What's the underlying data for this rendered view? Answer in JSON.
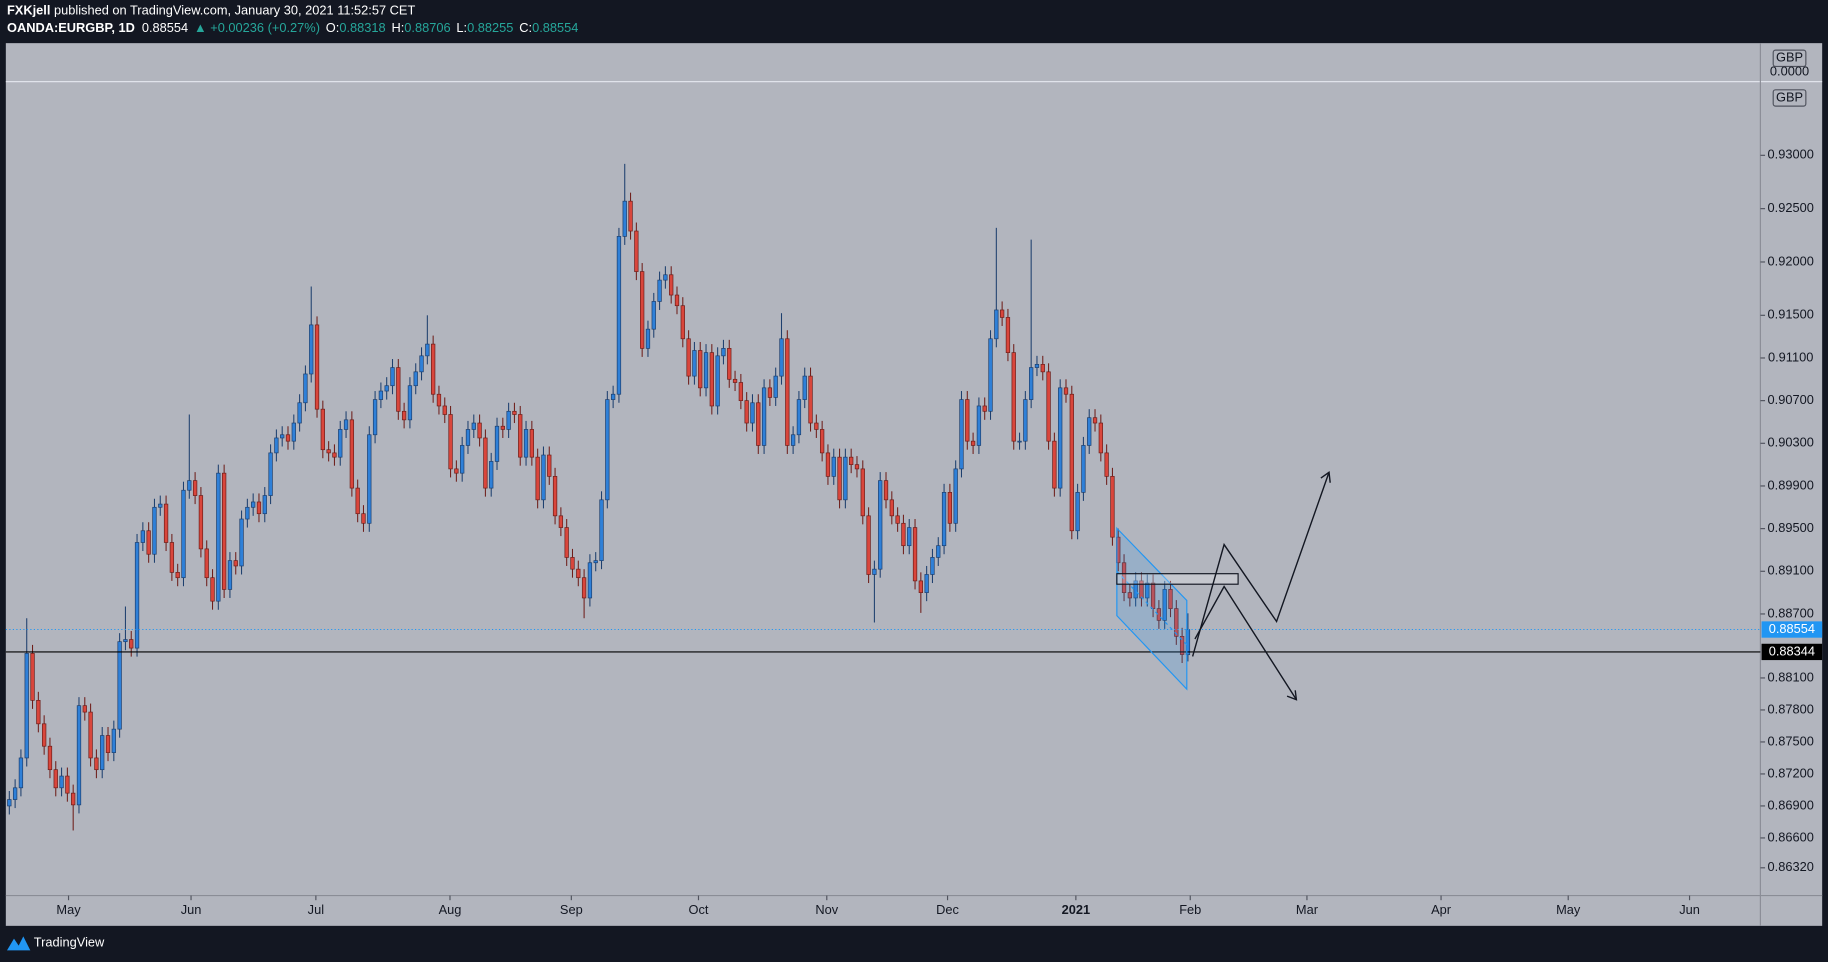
{
  "header": {
    "publisher": "FXKjell",
    "published": " published on TradingView.com, January 30, 2021 11:52:57 CET",
    "symbol": "OANDA:EURGBP, 1D",
    "last": "0.88554",
    "change": "▲ +0.00236 (+0.27%)",
    "o_label": "O:",
    "o": "0.88318",
    "h_label": "H:",
    "h": "0.88706",
    "l_label": "L:",
    "l": "0.88255",
    "c_label": "C:",
    "c": "0.88554"
  },
  "footer": {
    "brand": "TradingView"
  },
  "top_pane": {
    "unit": "GBP",
    "tick": "0.0000"
  },
  "chart_data": {
    "type": "candlestick",
    "unit": "GBP",
    "colors": {
      "up": "#2f80d8",
      "down": "#d9463c",
      "up_edge": "#1d3f6e",
      "down_edge": "#6e1e1a"
    },
    "xlim": [
      -0.6,
      301.6
    ],
    "xticks": [
      {
        "value": 10.2,
        "label": "May"
      },
      {
        "value": 31.3,
        "label": "Jun"
      },
      {
        "value": 52.8,
        "label": "Jul"
      },
      {
        "value": 75.9,
        "label": "Aug"
      },
      {
        "value": 96.8,
        "label": "Sep"
      },
      {
        "value": 118.7,
        "label": "Oct"
      },
      {
        "value": 140.8,
        "label": "Nov"
      },
      {
        "value": 161.6,
        "label": "Dec"
      },
      {
        "value": 183.7,
        "label": "2021"
      },
      {
        "value": 203.4,
        "label": "Feb"
      },
      {
        "value": 223.5,
        "label": "Mar"
      },
      {
        "value": 246.6,
        "label": "Apr"
      },
      {
        "value": 268.5,
        "label": "May"
      },
      {
        "value": 289.4,
        "label": "Jun"
      }
    ],
    "ylim": [
      0.8606,
      0.9368
    ],
    "yticks": [
      {
        "value": 0.93,
        "label": "0.93000"
      },
      {
        "value": 0.925,
        "label": "0.92500"
      },
      {
        "value": 0.92,
        "label": "0.92000"
      },
      {
        "value": 0.915,
        "label": "0.91500"
      },
      {
        "value": 0.911,
        "label": "0.91100"
      },
      {
        "value": 0.907,
        "label": "0.90700"
      },
      {
        "value": 0.903,
        "label": "0.90300"
      },
      {
        "value": 0.899,
        "label": "0.89900"
      },
      {
        "value": 0.895,
        "label": "0.89500"
      },
      {
        "value": 0.891,
        "label": "0.89100"
      },
      {
        "value": 0.887,
        "label": "0.88700"
      },
      {
        "value": 0.881,
        "label": "0.88100"
      },
      {
        "value": 0.878,
        "label": "0.87800"
      },
      {
        "value": 0.875,
        "label": "0.87500"
      },
      {
        "value": 0.872,
        "label": "0.87200"
      },
      {
        "value": 0.869,
        "label": "0.86900"
      },
      {
        "value": 0.866,
        "label": "0.86600"
      },
      {
        "value": 0.8632,
        "label": "0.86320"
      }
    ],
    "price_lines": [
      {
        "value": 0.88554,
        "label": "0.88554",
        "color": "#2196f3",
        "style": "dotted"
      },
      {
        "value": 0.88344,
        "label": "0.88344",
        "color": "#000000",
        "style": "solid"
      }
    ],
    "ohlc": [
      [
        0.869,
        0.8704,
        0.8682,
        0.8696
      ],
      [
        0.8696,
        0.8715,
        0.8688,
        0.8707
      ],
      [
        0.8707,
        0.8743,
        0.8699,
        0.8735
      ],
      [
        0.8735,
        0.8866,
        0.8727,
        0.8833
      ],
      [
        0.8833,
        0.8841,
        0.8781,
        0.8789
      ],
      [
        0.8789,
        0.8797,
        0.8759,
        0.8767
      ],
      [
        0.8767,
        0.8775,
        0.8738,
        0.8746
      ],
      [
        0.8746,
        0.8754,
        0.8716,
        0.8724
      ],
      [
        0.8724,
        0.8732,
        0.8699,
        0.8707
      ],
      [
        0.8707,
        0.8726,
        0.8699,
        0.8718
      ],
      [
        0.8718,
        0.8726,
        0.8694,
        0.8702
      ],
      [
        0.8702,
        0.871,
        0.8667,
        0.8691
      ],
      [
        0.8691,
        0.8792,
        0.8683,
        0.8784
      ],
      [
        0.8784,
        0.8792,
        0.877,
        0.8778
      ],
      [
        0.8778,
        0.8786,
        0.8727,
        0.8735
      ],
      [
        0.8735,
        0.8743,
        0.8716,
        0.8724
      ],
      [
        0.8724,
        0.8764,
        0.8716,
        0.8756
      ],
      [
        0.8756,
        0.8764,
        0.8732,
        0.874
      ],
      [
        0.874,
        0.877,
        0.8732,
        0.8762
      ],
      [
        0.8762,
        0.8852,
        0.8754,
        0.8844
      ],
      [
        0.8844,
        0.8877,
        0.8836,
        0.8846
      ],
      [
        0.8846,
        0.8854,
        0.883,
        0.8838
      ],
      [
        0.8838,
        0.8945,
        0.883,
        0.8937
      ],
      [
        0.8937,
        0.8956,
        0.8929,
        0.8948
      ],
      [
        0.8948,
        0.8956,
        0.8918,
        0.8926
      ],
      [
        0.8926,
        0.8978,
        0.8918,
        0.897
      ],
      [
        0.897,
        0.8981,
        0.8962,
        0.8973
      ],
      [
        0.8973,
        0.8981,
        0.8929,
        0.8937
      ],
      [
        0.8937,
        0.8945,
        0.8901,
        0.8909
      ],
      [
        0.8909,
        0.8917,
        0.8896,
        0.8904
      ],
      [
        0.8904,
        0.8994,
        0.8896,
        0.8986
      ],
      [
        0.8986,
        0.9057,
        0.8978,
        0.8995
      ],
      [
        0.8995,
        0.9003,
        0.8973,
        0.8981
      ],
      [
        0.8981,
        0.8989,
        0.8923,
        0.8931
      ],
      [
        0.8931,
        0.8939,
        0.8896,
        0.8904
      ],
      [
        0.8904,
        0.8912,
        0.8874,
        0.8882
      ],
      [
        0.8882,
        0.901,
        0.8874,
        0.9002
      ],
      [
        0.9002,
        0.901,
        0.8885,
        0.8893
      ],
      [
        0.8893,
        0.8928,
        0.8885,
        0.892
      ],
      [
        0.892,
        0.8928,
        0.8907,
        0.8915
      ],
      [
        0.8915,
        0.8967,
        0.8907,
        0.8959
      ],
      [
        0.8959,
        0.8978,
        0.8951,
        0.897
      ],
      [
        0.897,
        0.8983,
        0.8962,
        0.8975
      ],
      [
        0.8975,
        0.8983,
        0.8956,
        0.8964
      ],
      [
        0.8964,
        0.8989,
        0.8956,
        0.8981
      ],
      [
        0.8981,
        0.9029,
        0.8973,
        0.9021
      ],
      [
        0.9021,
        0.9043,
        0.9013,
        0.9035
      ],
      [
        0.9035,
        0.9046,
        0.9027,
        0.9038
      ],
      [
        0.9038,
        0.9046,
        0.9024,
        0.9032
      ],
      [
        0.9032,
        0.9057,
        0.9024,
        0.9049
      ],
      [
        0.9049,
        0.9076,
        0.9041,
        0.9068
      ],
      [
        0.9068,
        0.9103,
        0.906,
        0.9095
      ],
      [
        0.9095,
        0.9177,
        0.9087,
        0.9141
      ],
      [
        0.9141,
        0.9149,
        0.9054,
        0.9062
      ],
      [
        0.9062,
        0.907,
        0.9016,
        0.9024
      ],
      [
        0.9024,
        0.9032,
        0.9013,
        0.9021
      ],
      [
        0.9021,
        0.9029,
        0.9009,
        0.9017
      ],
      [
        0.9017,
        0.9051,
        0.9009,
        0.9043
      ],
      [
        0.9043,
        0.906,
        0.9035,
        0.9052
      ],
      [
        0.9052,
        0.906,
        0.898,
        0.8988
      ],
      [
        0.8988,
        0.8996,
        0.8956,
        0.8964
      ],
      [
        0.8964,
        0.8972,
        0.8947,
        0.8955
      ],
      [
        0.8955,
        0.9046,
        0.8947,
        0.9038
      ],
      [
        0.9038,
        0.9079,
        0.903,
        0.9071
      ],
      [
        0.9071,
        0.9087,
        0.9063,
        0.9079
      ],
      [
        0.9079,
        0.9092,
        0.9071,
        0.9084
      ],
      [
        0.9084,
        0.9109,
        0.9076,
        0.9101
      ],
      [
        0.9101,
        0.9109,
        0.9052,
        0.906
      ],
      [
        0.906,
        0.9068,
        0.9044,
        0.9052
      ],
      [
        0.9052,
        0.9092,
        0.9044,
        0.9084
      ],
      [
        0.9084,
        0.9105,
        0.9076,
        0.9097
      ],
      [
        0.9097,
        0.912,
        0.9089,
        0.9112
      ],
      [
        0.9112,
        0.915,
        0.9104,
        0.9123
      ],
      [
        0.9123,
        0.9131,
        0.9068,
        0.9076
      ],
      [
        0.9076,
        0.9084,
        0.9057,
        0.9065
      ],
      [
        0.9065,
        0.9073,
        0.9049,
        0.9057
      ],
      [
        0.9057,
        0.9065,
        0.8998,
        0.9006
      ],
      [
        0.9006,
        0.9014,
        0.8994,
        0.9002
      ],
      [
        0.9002,
        0.9036,
        0.8994,
        0.9028
      ],
      [
        0.9028,
        0.9051,
        0.902,
        0.9043
      ],
      [
        0.9043,
        0.9057,
        0.9035,
        0.9049
      ],
      [
        0.9049,
        0.9057,
        0.9027,
        0.9035
      ],
      [
        0.9035,
        0.9043,
        0.898,
        0.8988
      ],
      [
        0.8988,
        0.9021,
        0.898,
        0.9013
      ],
      [
        0.9013,
        0.9054,
        0.9005,
        0.9046
      ],
      [
        0.9046,
        0.9054,
        0.9035,
        0.9043
      ],
      [
        0.9043,
        0.9068,
        0.9035,
        0.906
      ],
      [
        0.906,
        0.9068,
        0.9049,
        0.9057
      ],
      [
        0.9057,
        0.9065,
        0.9009,
        0.9017
      ],
      [
        0.9017,
        0.9051,
        0.9009,
        0.9043
      ],
      [
        0.9043,
        0.9051,
        0.9009,
        0.9017
      ],
      [
        0.9017,
        0.9025,
        0.8969,
        0.8977
      ],
      [
        0.8977,
        0.9027,
        0.8969,
        0.9019
      ],
      [
        0.9019,
        0.9027,
        0.8991,
        0.8999
      ],
      [
        0.8999,
        0.9007,
        0.8954,
        0.8962
      ],
      [
        0.8962,
        0.897,
        0.8943,
        0.8951
      ],
      [
        0.8951,
        0.8959,
        0.8915,
        0.8923
      ],
      [
        0.8923,
        0.8931,
        0.8904,
        0.8912
      ],
      [
        0.8912,
        0.892,
        0.8896,
        0.8904
      ],
      [
        0.8904,
        0.8912,
        0.8866,
        0.8885
      ],
      [
        0.8885,
        0.8926,
        0.8877,
        0.8918
      ],
      [
        0.8918,
        0.8928,
        0.891,
        0.892
      ],
      [
        0.892,
        0.8985,
        0.8912,
        0.8977
      ],
      [
        0.8977,
        0.9079,
        0.8969,
        0.9071
      ],
      [
        0.9071,
        0.9084,
        0.9063,
        0.9076
      ],
      [
        0.9076,
        0.9232,
        0.9068,
        0.9224
      ],
      [
        0.9224,
        0.9292,
        0.9216,
        0.9257
      ],
      [
        0.9257,
        0.9265,
        0.9221,
        0.9229
      ],
      [
        0.9229,
        0.9237,
        0.9183,
        0.9191
      ],
      [
        0.9191,
        0.9199,
        0.9111,
        0.9119
      ],
      [
        0.9119,
        0.9145,
        0.9111,
        0.9137
      ],
      [
        0.9137,
        0.9171,
        0.9129,
        0.9163
      ],
      [
        0.9163,
        0.9191,
        0.9155,
        0.9183
      ],
      [
        0.9183,
        0.9196,
        0.9175,
        0.9188
      ],
      [
        0.9188,
        0.9196,
        0.9161,
        0.9169
      ],
      [
        0.9169,
        0.9177,
        0.9151,
        0.9159
      ],
      [
        0.9159,
        0.9167,
        0.912,
        0.9128
      ],
      [
        0.9128,
        0.9136,
        0.9085,
        0.9093
      ],
      [
        0.9093,
        0.9125,
        0.9085,
        0.9117
      ],
      [
        0.9117,
        0.9125,
        0.9074,
        0.9082
      ],
      [
        0.9082,
        0.9123,
        0.9074,
        0.9115
      ],
      [
        0.9115,
        0.9123,
        0.9057,
        0.9065
      ],
      [
        0.9065,
        0.912,
        0.9057,
        0.9112
      ],
      [
        0.9112,
        0.9127,
        0.9104,
        0.9119
      ],
      [
        0.9119,
        0.9127,
        0.9082,
        0.909
      ],
      [
        0.909,
        0.9098,
        0.9079,
        0.9087
      ],
      [
        0.9087,
        0.9095,
        0.9062,
        0.907
      ],
      [
        0.907,
        0.9078,
        0.9041,
        0.9049
      ],
      [
        0.9049,
        0.9076,
        0.9041,
        0.9068
      ],
      [
        0.9068,
        0.9076,
        0.902,
        0.9028
      ],
      [
        0.9028,
        0.909,
        0.902,
        0.9082
      ],
      [
        0.9082,
        0.909,
        0.9065,
        0.9073
      ],
      [
        0.9073,
        0.9101,
        0.9065,
        0.9093
      ],
      [
        0.9093,
        0.9152,
        0.9085,
        0.9128
      ],
      [
        0.9128,
        0.9136,
        0.902,
        0.9028
      ],
      [
        0.9028,
        0.9046,
        0.902,
        0.9038
      ],
      [
        0.9038,
        0.9079,
        0.903,
        0.9071
      ],
      [
        0.9071,
        0.9101,
        0.9063,
        0.9093
      ],
      [
        0.9093,
        0.9101,
        0.9041,
        0.9049
      ],
      [
        0.9049,
        0.9057,
        0.9035,
        0.9043
      ],
      [
        0.9043,
        0.9051,
        0.9013,
        0.9021
      ],
      [
        0.9021,
        0.9029,
        0.8991,
        0.8999
      ],
      [
        0.8999,
        0.9025,
        0.8991,
        0.9017
      ],
      [
        0.9017,
        0.9025,
        0.8969,
        0.8977
      ],
      [
        0.8977,
        0.9025,
        0.8969,
        0.9017
      ],
      [
        0.9017,
        0.9025,
        0.9002,
        0.901
      ],
      [
        0.901,
        0.9018,
        0.8998,
        0.9006
      ],
      [
        0.9006,
        0.9014,
        0.8954,
        0.8962
      ],
      [
        0.8962,
        0.897,
        0.8899,
        0.8907
      ],
      [
        0.8907,
        0.892,
        0.8862,
        0.8912
      ],
      [
        0.8912,
        0.9003,
        0.8904,
        0.8995
      ],
      [
        0.8995,
        0.9003,
        0.8969,
        0.8977
      ],
      [
        0.8977,
        0.8985,
        0.8954,
        0.8962
      ],
      [
        0.8962,
        0.897,
        0.8947,
        0.8955
      ],
      [
        0.8955,
        0.8963,
        0.8926,
        0.8934
      ],
      [
        0.8934,
        0.8959,
        0.8926,
        0.8951
      ],
      [
        0.8951,
        0.8959,
        0.8893,
        0.8901
      ],
      [
        0.8901,
        0.8909,
        0.8871,
        0.889
      ],
      [
        0.889,
        0.8915,
        0.8882,
        0.8907
      ],
      [
        0.8907,
        0.8931,
        0.8899,
        0.8923
      ],
      [
        0.8923,
        0.8942,
        0.8915,
        0.8934
      ],
      [
        0.8934,
        0.8992,
        0.8926,
        0.8984
      ],
      [
        0.8984,
        0.8992,
        0.8947,
        0.8955
      ],
      [
        0.8955,
        0.9014,
        0.8947,
        0.9006
      ],
      [
        0.9006,
        0.9079,
        0.8998,
        0.9071
      ],
      [
        0.9071,
        0.9079,
        0.9024,
        0.9032
      ],
      [
        0.9032,
        0.904,
        0.902,
        0.9028
      ],
      [
        0.9028,
        0.9073,
        0.902,
        0.9065
      ],
      [
        0.9065,
        0.9073,
        0.9052,
        0.906
      ],
      [
        0.906,
        0.9136,
        0.9052,
        0.9128
      ],
      [
        0.9128,
        0.9232,
        0.912,
        0.9155
      ],
      [
        0.9155,
        0.9163,
        0.914,
        0.9148
      ],
      [
        0.9148,
        0.9156,
        0.9107,
        0.9115
      ],
      [
        0.9115,
        0.9123,
        0.9024,
        0.9032
      ],
      [
        0.9032,
        0.904,
        0.9024,
        0.9032
      ],
      [
        0.9032,
        0.9079,
        0.9024,
        0.9071
      ],
      [
        0.9071,
        0.9221,
        0.9063,
        0.9101
      ],
      [
        0.9101,
        0.9112,
        0.9093,
        0.9104
      ],
      [
        0.9104,
        0.9112,
        0.9089,
        0.9097
      ],
      [
        0.9097,
        0.9105,
        0.9024,
        0.9032
      ],
      [
        0.9032,
        0.904,
        0.898,
        0.8988
      ],
      [
        0.8988,
        0.909,
        0.898,
        0.9082
      ],
      [
        0.9082,
        0.909,
        0.9068,
        0.9076
      ],
      [
        0.9076,
        0.9084,
        0.894,
        0.8948
      ],
      [
        0.8948,
        0.8992,
        0.894,
        0.8984
      ],
      [
        0.8984,
        0.9036,
        0.8976,
        0.9028
      ],
      [
        0.9028,
        0.9062,
        0.902,
        0.9054
      ],
      [
        0.9054,
        0.9062,
        0.9041,
        0.9049
      ],
      [
        0.9049,
        0.9057,
        0.9013,
        0.9021
      ],
      [
        0.9021,
        0.9029,
        0.8991,
        0.8999
      ],
      [
        0.8999,
        0.9007,
        0.8934,
        0.8942
      ],
      [
        0.8942,
        0.895,
        0.891,
        0.8918
      ],
      [
        0.8918,
        0.8926,
        0.8882,
        0.889
      ],
      [
        0.889,
        0.8898,
        0.8877,
        0.8885
      ],
      [
        0.8885,
        0.8909,
        0.8877,
        0.8901
      ],
      [
        0.8901,
        0.8909,
        0.8877,
        0.8885
      ],
      [
        0.8885,
        0.8907,
        0.8877,
        0.8899
      ],
      [
        0.8899,
        0.8907,
        0.8867,
        0.8875
      ],
      [
        0.8875,
        0.8883,
        0.8856,
        0.8864
      ],
      [
        0.8864,
        0.8901,
        0.8856,
        0.8893
      ],
      [
        0.8893,
        0.8901,
        0.8867,
        0.8875
      ],
      [
        0.8875,
        0.8883,
        0.8841,
        0.8849
      ],
      [
        0.8849,
        0.8857,
        0.8824,
        0.8832
      ],
      [
        0.88318,
        0.88706,
        0.88255,
        0.88554
      ]
    ]
  }
}
